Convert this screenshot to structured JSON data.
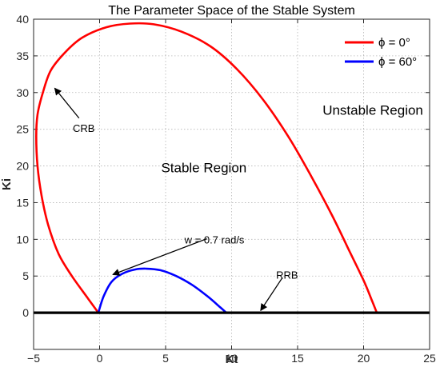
{
  "chart_data": {
    "type": "line",
    "title": "The Parameter Space of the Stable System",
    "xlabel": "Kt",
    "ylabel": "Ki",
    "xlim": [
      -5,
      25
    ],
    "ylim": [
      -5,
      40
    ],
    "xticks": [
      -5,
      0,
      5,
      10,
      15,
      20,
      25
    ],
    "yticks": [
      0,
      5,
      10,
      15,
      20,
      25,
      30,
      35,
      40
    ],
    "grid": true,
    "legend_position": "top-right",
    "series": [
      {
        "name": "ϕ = 0°",
        "color": "#ff0000",
        "x": [
          -0.1,
          -0.9,
          -2.1,
          -3.1,
          -3.9,
          -4.4,
          -4.7,
          -4.8,
          -4.7,
          -4.3,
          -3.7,
          -2.6,
          -1.3,
          0.5,
          2.3,
          4.1,
          6.2,
          8.4,
          10.4,
          12.4,
          14.3,
          16.0,
          17.6,
          18.9,
          20.0,
          20.6,
          21.0
        ],
        "y": [
          0,
          2,
          5,
          8,
          12,
          16,
          20,
          24,
          27,
          30,
          33,
          35.5,
          37.5,
          38.9,
          39.4,
          39.3,
          38.3,
          36.3,
          33.2,
          29.0,
          24.0,
          18.7,
          13.3,
          8.5,
          4.4,
          1.8,
          0
        ]
      },
      {
        "name": "ϕ = 60°",
        "color": "#0000ff",
        "x": [
          -0.1,
          0.3,
          0.9,
          1.7,
          2.7,
          3.5,
          4.6,
          5.8,
          7.0,
          8.2,
          9.1,
          9.6
        ],
        "y": [
          0,
          2.2,
          4.2,
          5.3,
          5.9,
          6.0,
          5.8,
          5.0,
          3.8,
          2.2,
          0.8,
          0
        ]
      },
      {
        "color": "#000000",
        "x": [
          -5,
          25
        ],
        "y": [
          0,
          0
        ]
      }
    ],
    "annotations": [
      {
        "text": "CRB",
        "x": -1.2,
        "y": 25.2,
        "arrow_to": [
          -3.4,
          30.6
        ]
      },
      {
        "text": "w = 0.7 rad/s",
        "x": 8.7,
        "y": 10.0,
        "arrow_to": [
          1.0,
          5.2
        ]
      },
      {
        "text": "RRB",
        "x": 14.2,
        "y": 5.2,
        "arrow_to": [
          12.2,
          0.3
        ]
      },
      {
        "text": "Unstable Region",
        "x": 20.7,
        "y": 27.5
      },
      {
        "text": "Stable Region",
        "x": 7.9,
        "y": 19.7
      }
    ]
  }
}
